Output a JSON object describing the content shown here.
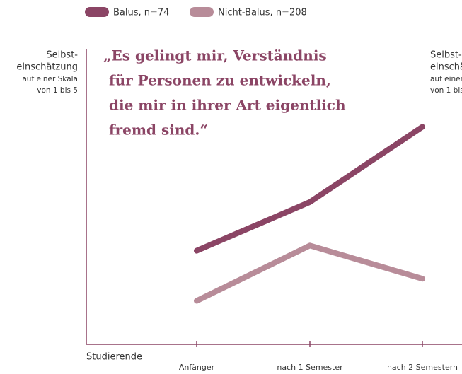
{
  "chart_data": {
    "type": "line",
    "title": [
      "„Es gelingt mir, Verständnis",
      "für Personen zu entwickeln,",
      "die mir in ihrer Art eigentlich",
      "fremd sind.“"
    ],
    "y_label": [
      "Selbst-",
      "einschätzung",
      "auf einer Skala",
      "von 1 bis 5"
    ],
    "x_label": "Studierende",
    "categories": [
      "Anfänger",
      "nach 1 Semester",
      "nach 2 Semestern"
    ],
    "series": [
      {
        "name": "Balus, n=74",
        "color": "#8b4565",
        "values": [
          2.27,
          2.93,
          3.95
        ]
      },
      {
        "name": "Nicht-Balus, n=208",
        "color": "#b88c99",
        "values": [
          1.59,
          2.34,
          1.89
        ]
      }
    ],
    "ylim": [
      1,
      5
    ]
  }
}
